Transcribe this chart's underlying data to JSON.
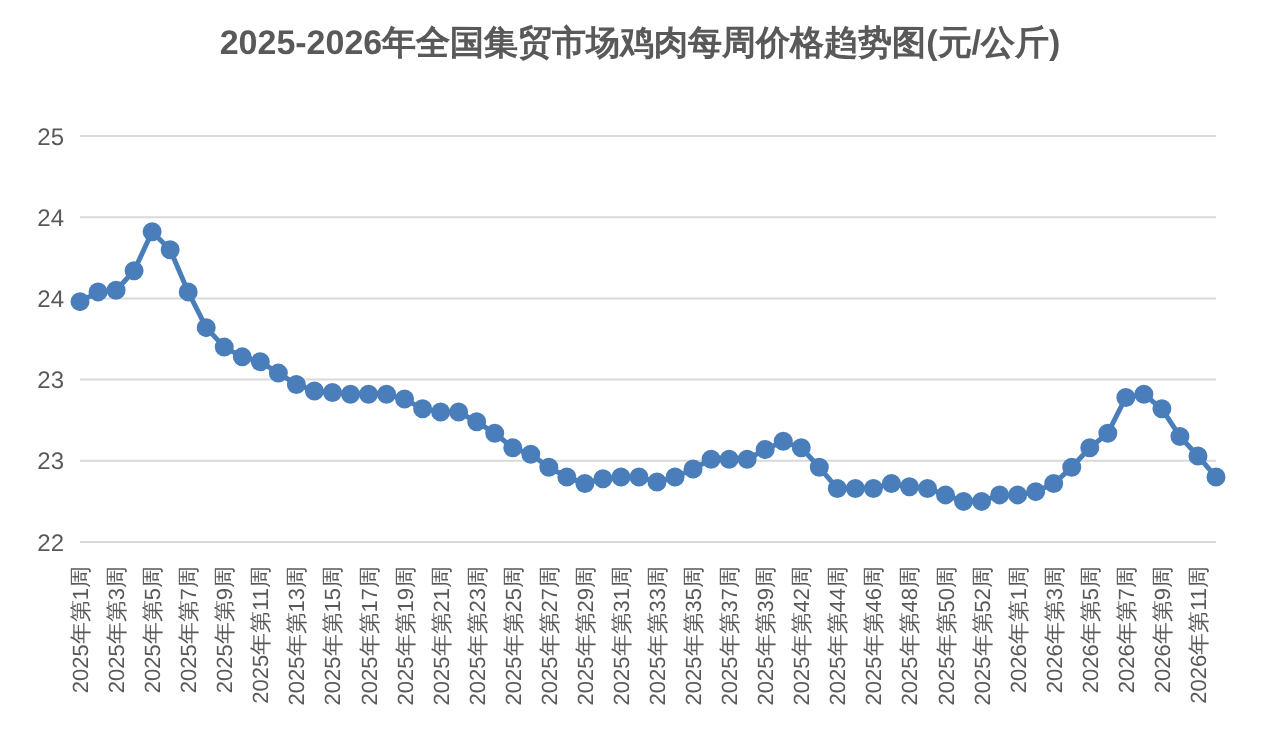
{
  "chart_data": {
    "type": "line",
    "title": "2025-2026年全国集贸市场鸡肉每周价格趋势图(元/公斤)",
    "categories": [
      "2025年第1周",
      null,
      "2025年第3周",
      null,
      "2025年第5周",
      null,
      "2025年第7周",
      null,
      "2025年第9周",
      null,
      "2025年第11周",
      null,
      "2025年第13周",
      null,
      "2025年第15周",
      null,
      "2025年第17周",
      null,
      "2025年第19周",
      null,
      "2025年第21周",
      null,
      "2025年第23周",
      null,
      "2025年第25周",
      null,
      "2025年第27周",
      null,
      "2025年第29周",
      null,
      "2025年第31周",
      null,
      "2025年第33周",
      null,
      "2025年第35周",
      null,
      "2025年第37周",
      null,
      "2025年第39周",
      null,
      "2025年第42周",
      null,
      "2025年第44周",
      null,
      "2025年第46周",
      null,
      "2025年第48周",
      null,
      "2025年第50周",
      null,
      "2025年第52周",
      null,
      "2026年第1周",
      null,
      "2026年第3周",
      null,
      "2026年第5周",
      null,
      "2026年第7周",
      null,
      "2026年第9周",
      null,
      "2026年第11周",
      null
    ],
    "series": [
      {
        "color": "#4a7ebb",
        "values": [
          23.48,
          23.54,
          23.55,
          23.67,
          23.91,
          23.8,
          23.54,
          23.32,
          23.2,
          23.14,
          23.11,
          23.04,
          22.97,
          22.93,
          22.92,
          22.91,
          22.91,
          22.91,
          22.88,
          22.82,
          22.8,
          22.8,
          22.74,
          22.67,
          22.58,
          22.54,
          22.46,
          22.4,
          22.36,
          22.39,
          22.4,
          22.4,
          22.37,
          22.4,
          22.45,
          22.51,
          22.51,
          22.51,
          22.57,
          22.62,
          22.58,
          22.46,
          22.33,
          22.33,
          22.33,
          22.36,
          22.34,
          22.33,
          22.29,
          22.25,
          22.25,
          22.29,
          22.29,
          22.31,
          22.36,
          22.46,
          22.58,
          22.67,
          22.89,
          22.91,
          22.82,
          22.65,
          22.53,
          22.4
        ]
      }
    ],
    "ylim": [
      22,
      24.5
    ],
    "yticks": [
      {
        "value": 22,
        "label": "22"
      },
      {
        "value": 22.5,
        "label": "23"
      },
      {
        "value": 23,
        "label": "23"
      },
      {
        "value": 23.5,
        "label": "24"
      },
      {
        "value": 24,
        "label": "24"
      },
      {
        "value": 24.5,
        "label": "25"
      }
    ],
    "grid": "y",
    "marker": "circle",
    "line_style": "solid",
    "legend": false
  }
}
